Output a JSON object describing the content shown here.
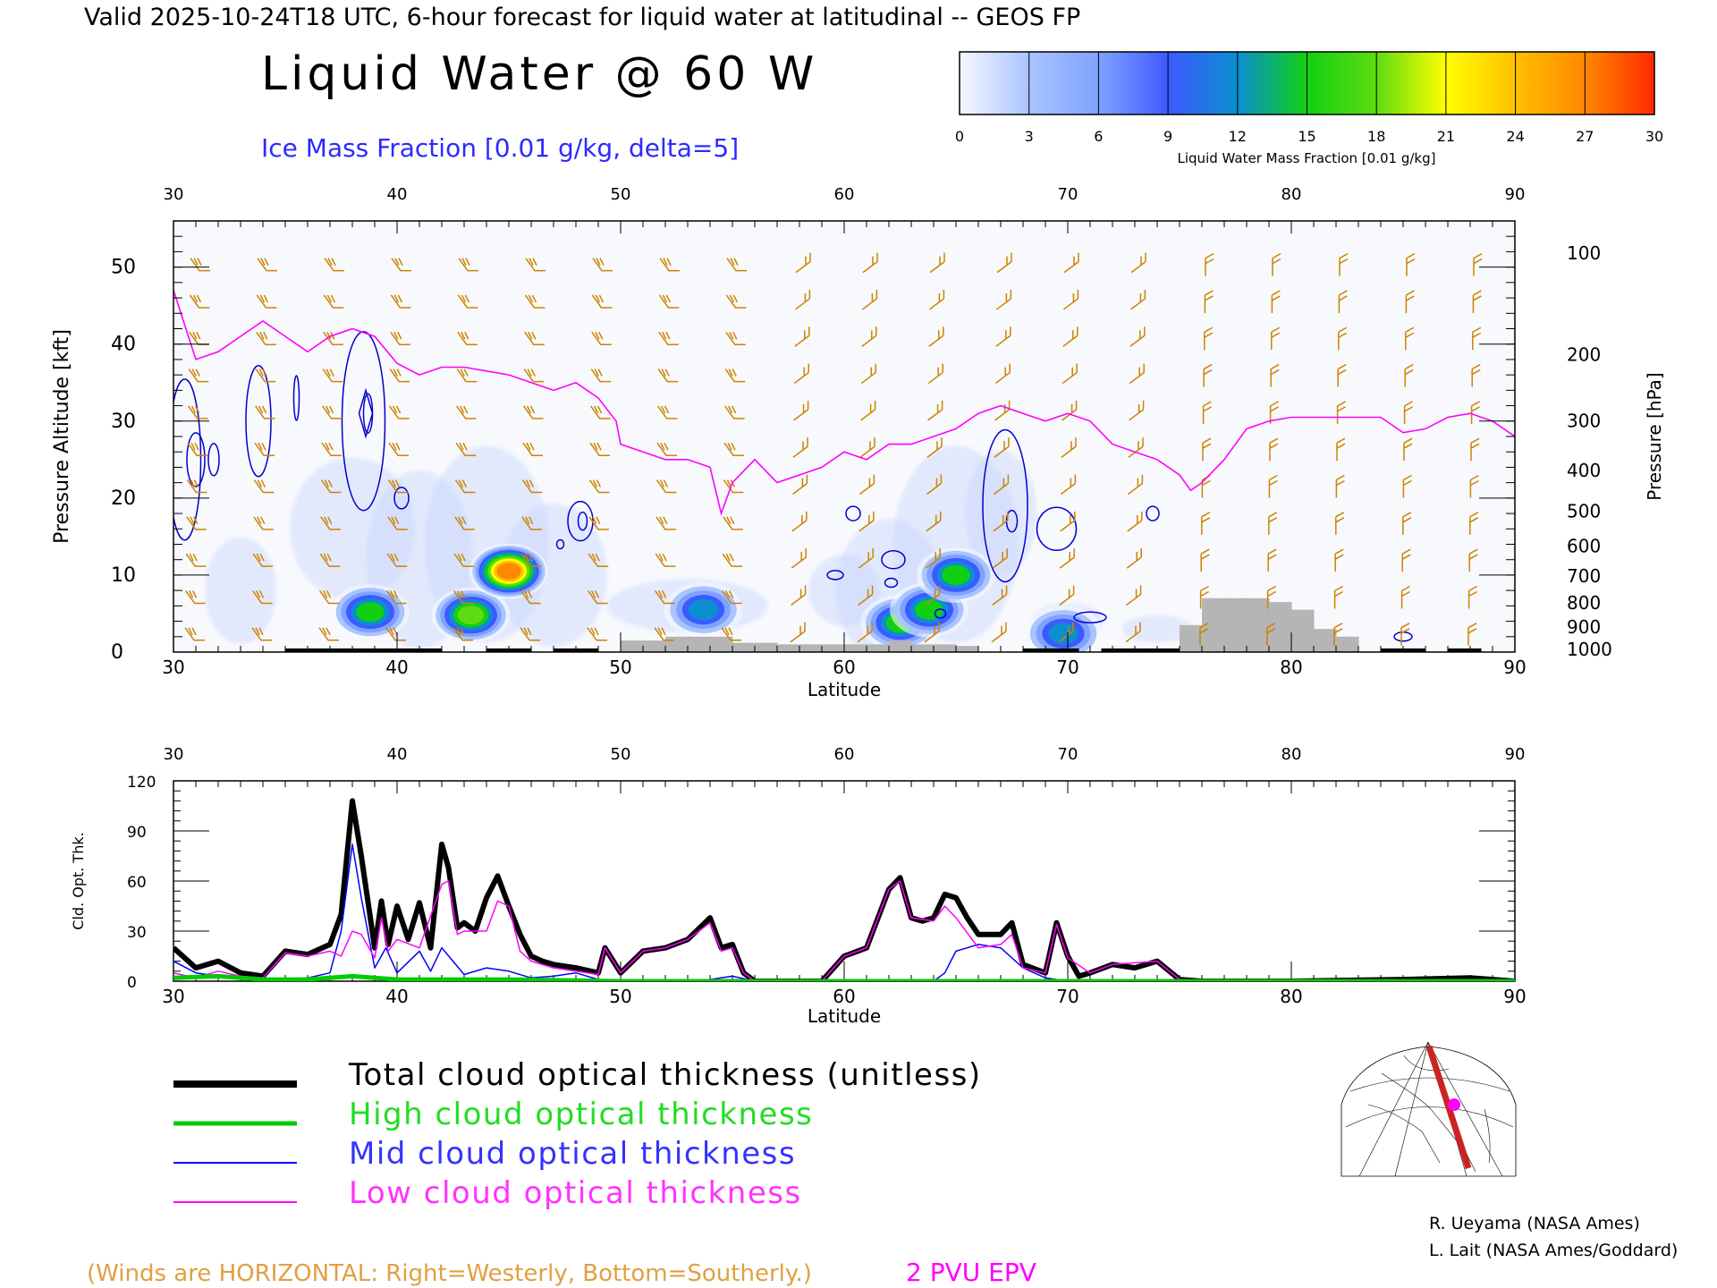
{
  "header": {
    "valid_line": "Valid 2025-10-24T18 UTC, 6-hour forecast for liquid water at latitudinal -- GEOS FP",
    "title": "Liquid Water @ 60 W",
    "ice_note": "Ice Mass Fraction [0.01 g/kg, delta=5]"
  },
  "colorbar": {
    "ticks": [
      "0",
      "3",
      "6",
      "9",
      "12",
      "15",
      "18",
      "21",
      "24",
      "27",
      "30"
    ],
    "label": "Liquid Water Mass Fraction [0.01 g/kg]",
    "colors": [
      "#f6f8ff",
      "#aac4ff",
      "#7ea2ff",
      "#3c5aff",
      "#0b8fd0",
      "#11d011",
      "#5fdc11",
      "#ffff00",
      "#ffc000",
      "#ff8800",
      "#ff2a00"
    ]
  },
  "colors": {
    "ice_contour": "#0000cc",
    "epv_line": "#ff00ff",
    "wind_barb": "#cc8400",
    "terrain": "#b5b5b5",
    "total_line": "#000000",
    "high_line": "#00cc00",
    "mid_line": "#0000ff",
    "low_line": "#ff00ff"
  },
  "chart_data": [
    {
      "type": "heatmap",
      "title": "Liquid Water @ 60 W",
      "xlabel": "Latitude",
      "ylabel": "Pressure Altitude [kft]",
      "ylabel_right": "Pressure [hPa]",
      "xlim": [
        30,
        90
      ],
      "ylim": [
        0,
        56
      ],
      "x_ticks": [
        "30",
        "40",
        "50",
        "60",
        "70",
        "80",
        "90"
      ],
      "y_ticks": [
        "0",
        "10",
        "20",
        "30",
        "40",
        "50"
      ],
      "pressure_ticks": [
        "100",
        "200",
        "300",
        "400",
        "500",
        "600",
        "700",
        "800",
        "900",
        "1000"
      ],
      "liquid_water_maxima": [
        {
          "lat": 38.8,
          "kft": 5.2,
          "value": 15
        },
        {
          "lat": 43.3,
          "kft": 4.8,
          "value": 18
        },
        {
          "lat": 45.0,
          "kft": 10.5,
          "value": 27
        },
        {
          "lat": 53.7,
          "kft": 5.5,
          "value": 11
        },
        {
          "lat": 62.5,
          "kft": 3.8,
          "value": 16
        },
        {
          "lat": 63.8,
          "kft": 5.5,
          "value": 14
        },
        {
          "lat": 65.0,
          "kft": 10.0,
          "value": 16
        },
        {
          "lat": 69.8,
          "kft": 2.4,
          "value": 13
        }
      ],
      "epv_2pvu_kft": [
        [
          30,
          47
        ],
        [
          31,
          38
        ],
        [
          32,
          39
        ],
        [
          33,
          41
        ],
        [
          34,
          43
        ],
        [
          35,
          41
        ],
        [
          36,
          39
        ],
        [
          37,
          41
        ],
        [
          38,
          42
        ],
        [
          39,
          41
        ],
        [
          40,
          37.5
        ],
        [
          41,
          36
        ],
        [
          42,
          37
        ],
        [
          43,
          37
        ],
        [
          44,
          36.5
        ],
        [
          45,
          36
        ],
        [
          46,
          35
        ],
        [
          47,
          34
        ],
        [
          48,
          35
        ],
        [
          49,
          33
        ],
        [
          49.8,
          30
        ],
        [
          50,
          27
        ],
        [
          51,
          26
        ],
        [
          52,
          25
        ],
        [
          53,
          25
        ],
        [
          54,
          24
        ],
        [
          54.5,
          18
        ],
        [
          55,
          22
        ],
        [
          56,
          25
        ],
        [
          57,
          22
        ],
        [
          58,
          23
        ],
        [
          59,
          24
        ],
        [
          60,
          26
        ],
        [
          61,
          25
        ],
        [
          62,
          27
        ],
        [
          63,
          27
        ],
        [
          64,
          28
        ],
        [
          65,
          29
        ],
        [
          66,
          31
        ],
        [
          67,
          32
        ],
        [
          68,
          31
        ],
        [
          69,
          30
        ],
        [
          70,
          31
        ],
        [
          71,
          30
        ],
        [
          72,
          27
        ],
        [
          73,
          26
        ],
        [
          74,
          25
        ],
        [
          75,
          23
        ],
        [
          75.5,
          21
        ],
        [
          76,
          22
        ],
        [
          77,
          25
        ],
        [
          78,
          29
        ],
        [
          79,
          30
        ],
        [
          80,
          30.5
        ],
        [
          82,
          30.5
        ],
        [
          84,
          30.5
        ],
        [
          85,
          28.5
        ],
        [
          86,
          29
        ],
        [
          87,
          30.5
        ],
        [
          88,
          31
        ],
        [
          89,
          30
        ],
        [
          90,
          28
        ]
      ],
      "ice_contour_levels": [
        5,
        10,
        15
      ]
    },
    {
      "type": "line",
      "xlabel": "Latitude",
      "ylabel": "Cld. Opt. Thk.",
      "xlim": [
        30,
        90
      ],
      "ylim": [
        0,
        120
      ],
      "x_ticks": [
        "30",
        "40",
        "50",
        "60",
        "70",
        "80",
        "90"
      ],
      "y_ticks": [
        "0",
        "30",
        "60",
        "90",
        "120"
      ],
      "series": [
        {
          "name": "Total cloud optical thickness (unitless)",
          "x": [
            30,
            31,
            32,
            33,
            34,
            35,
            36,
            37,
            37.5,
            38,
            38.4,
            39,
            39.3,
            39.6,
            40,
            40.5,
            41,
            41.5,
            42,
            42.3,
            42.7,
            43,
            43.5,
            44,
            44.5,
            45,
            45.5,
            46,
            46.5,
            47,
            48,
            49,
            49.3,
            50,
            51,
            52,
            53,
            54,
            54.5,
            55,
            55.5,
            56,
            57,
            58,
            59,
            60,
            61,
            62,
            62.5,
            63,
            63.5,
            64,
            64.5,
            65,
            65.5,
            66,
            67,
            67.5,
            68,
            69,
            69.5,
            70,
            70.5,
            71,
            72,
            73,
            74,
            75,
            76,
            80,
            85,
            88,
            90
          ],
          "y": [
            20,
            8,
            12,
            5,
            3,
            18,
            16,
            22,
            40,
            108,
            75,
            20,
            48,
            22,
            45,
            25,
            47,
            20,
            82,
            68,
            32,
            35,
            30,
            50,
            63,
            45,
            28,
            15,
            12,
            10,
            8,
            5,
            20,
            5,
            18,
            20,
            25,
            38,
            20,
            22,
            5,
            0,
            0,
            0,
            0,
            15,
            20,
            55,
            62,
            38,
            36,
            38,
            52,
            50,
            38,
            28,
            28,
            35,
            10,
            5,
            35,
            15,
            3,
            5,
            10,
            8,
            12,
            1,
            0,
            0,
            1,
            2,
            0
          ]
        },
        {
          "name": "High cloud optical thickness",
          "x": [
            30,
            32,
            34,
            36,
            38,
            40,
            45,
            50,
            60,
            70,
            80,
            90
          ],
          "y": [
            2,
            3,
            1,
            1,
            3,
            1,
            1,
            0,
            0,
            0,
            0,
            0
          ]
        },
        {
          "name": "Mid cloud optical thickness",
          "x": [
            30,
            31,
            32,
            33,
            34,
            35,
            36,
            37,
            37.5,
            38,
            38.4,
            39,
            39.5,
            40,
            41,
            41.5,
            42,
            43,
            44,
            45,
            46,
            47,
            48,
            49,
            50,
            52,
            54,
            55,
            56,
            60,
            62,
            63,
            64,
            64.5,
            65,
            65.5,
            66,
            67,
            68,
            69,
            70,
            71,
            72,
            74,
            75,
            80,
            90
          ],
          "y": [
            12,
            5,
            3,
            2,
            1,
            1,
            2,
            5,
            30,
            82,
            50,
            8,
            20,
            5,
            18,
            6,
            20,
            4,
            8,
            6,
            2,
            3,
            5,
            1,
            0,
            0,
            1,
            3,
            0,
            0,
            0,
            0,
            0,
            5,
            18,
            20,
            22,
            20,
            8,
            2,
            0,
            0,
            0,
            0,
            0,
            0,
            0
          ]
        },
        {
          "name": "Low cloud optical thickness",
          "x": [
            30,
            31,
            32,
            33,
            34,
            35,
            36,
            37,
            37.5,
            38,
            38.4,
            39,
            39.3,
            39.6,
            40,
            41,
            42,
            42.3,
            42.7,
            43,
            44,
            44.5,
            45,
            45.5,
            46,
            47,
            48,
            49,
            49.3,
            50,
            51,
            52,
            53,
            54,
            54.5,
            55,
            55.5,
            56,
            59,
            60,
            61,
            62,
            62.5,
            63,
            64,
            64.5,
            65,
            66,
            67,
            67.5,
            68,
            69,
            69.5,
            70,
            71,
            72,
            74,
            75,
            80,
            90
          ],
          "y": [
            5,
            2,
            6,
            3,
            2,
            17,
            15,
            18,
            15,
            30,
            28,
            14,
            38,
            18,
            25,
            20,
            58,
            60,
            28,
            30,
            30,
            48,
            45,
            18,
            12,
            8,
            6,
            4,
            20,
            5,
            18,
            20,
            25,
            35,
            18,
            20,
            5,
            0,
            0,
            15,
            20,
            55,
            60,
            38,
            36,
            45,
            38,
            20,
            22,
            28,
            8,
            5,
            34,
            14,
            5,
            10,
            12,
            1,
            0,
            0
          ]
        }
      ]
    }
  ],
  "legend": {
    "items": [
      {
        "label": "Total cloud optical thickness (unitless)",
        "color": "#000000"
      },
      {
        "label": "High cloud optical thickness",
        "color": "#00cc00"
      },
      {
        "label": "Mid cloud optical thickness",
        "color": "#0000ff"
      },
      {
        "label": "Low cloud optical thickness",
        "color": "#ff00ff"
      }
    ]
  },
  "footer": {
    "winds_note": "(Winds are HORIZONTAL: Right=Westerly, Bottom=Southerly.)",
    "epv_note": "2 PVU EPV",
    "credit_1": "R. Ueyama (NASA Ames)",
    "credit_2": "L. Lait (NASA Ames/Goddard)"
  }
}
